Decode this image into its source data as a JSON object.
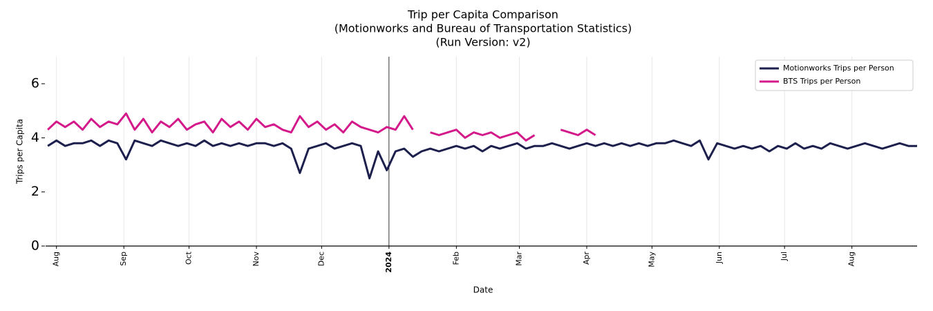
{
  "chart_data": {
    "type": "line",
    "title": [
      "Trip per Capita Comparison",
      "(Motionworks and Bureau of Transportation Statistics)",
      "(Run Version: v2)"
    ],
    "xlabel": "Date",
    "ylabel": "Trips per Capita",
    "x": [
      -4,
      0,
      4,
      8,
      12,
      16,
      20,
      24,
      28,
      32,
      36,
      40,
      44,
      48,
      52,
      56,
      60,
      64,
      68,
      72,
      76,
      80,
      84,
      88,
      92,
      96,
      100,
      104,
      108,
      112,
      116,
      120,
      124,
      128,
      132,
      136,
      140,
      144,
      148,
      152,
      156,
      160,
      164,
      168,
      172,
      176,
      180,
      184,
      188,
      192,
      196,
      200,
      204,
      208,
      212,
      216,
      220,
      224,
      228,
      232,
      236,
      240,
      244,
      248,
      252,
      256,
      260,
      264,
      268,
      272,
      276,
      280,
      284,
      288,
      292,
      296,
      300,
      304,
      308,
      312,
      316,
      320,
      324,
      328,
      332,
      336,
      340,
      344,
      348,
      352,
      356,
      360,
      364,
      368,
      372,
      376,
      380,
      384,
      388,
      392,
      396
    ],
    "series": [
      {
        "name": "Motionworks Trips per Person",
        "color": "#1d1f4d",
        "values": [
          3.7,
          3.9,
          3.7,
          3.8,
          3.8,
          3.9,
          3.7,
          3.9,
          3.8,
          3.2,
          3.9,
          3.8,
          3.7,
          3.9,
          3.8,
          3.7,
          3.8,
          3.7,
          3.9,
          3.7,
          3.8,
          3.7,
          3.8,
          3.7,
          3.8,
          3.8,
          3.7,
          3.8,
          3.6,
          2.7,
          3.6,
          3.7,
          3.8,
          3.6,
          3.7,
          3.8,
          3.7,
          2.5,
          3.5,
          2.8,
          3.5,
          3.6,
          3.3,
          3.5,
          3.6,
          3.5,
          3.6,
          3.7,
          3.6,
          3.7,
          3.5,
          3.7,
          3.6,
          3.7,
          3.8,
          3.6,
          3.7,
          3.7,
          3.8,
          3.7,
          3.6,
          3.7,
          3.8,
          3.7,
          3.8,
          3.7,
          3.8,
          3.7,
          3.8,
          3.7,
          3.8,
          3.8,
          3.9,
          3.8,
          3.7,
          3.9,
          3.2,
          3.8,
          3.7,
          3.6,
          3.7,
          3.6,
          3.7,
          3.5,
          3.7,
          3.6,
          3.8,
          3.6,
          3.7,
          3.6,
          3.8,
          3.7,
          3.6,
          3.7,
          3.8,
          3.7,
          3.6,
          3.7,
          3.8,
          3.7,
          3.7
        ]
      },
      {
        "name": "BTS Trips per Person",
        "color": "#d4198a",
        "values": [
          4.3,
          4.6,
          4.4,
          4.6,
          4.3,
          4.7,
          4.4,
          4.6,
          4.5,
          4.9,
          4.3,
          4.7,
          4.2,
          4.6,
          4.4,
          4.7,
          4.3,
          4.5,
          4.6,
          4.2,
          4.7,
          4.4,
          4.6,
          4.3,
          4.7,
          4.4,
          4.5,
          4.3,
          4.2,
          4.8,
          4.4,
          4.6,
          4.3,
          4.5,
          4.2,
          4.6,
          4.4,
          4.3,
          4.2,
          4.4,
          4.3,
          4.8,
          4.3,
          null,
          4.2,
          4.1,
          4.2,
          4.3,
          4.0,
          4.2,
          4.1,
          4.2,
          4.0,
          4.1,
          4.2,
          3.9,
          4.1,
          null,
          null,
          4.3,
          4.2,
          4.1,
          4.3,
          4.1,
          null,
          null,
          null,
          null,
          null,
          null,
          null,
          null,
          null,
          null,
          null,
          null,
          null,
          null,
          null,
          null,
          null,
          null,
          null,
          null,
          null,
          null,
          null,
          null,
          null,
          null,
          null,
          null,
          null,
          null,
          null,
          null,
          null,
          null,
          null,
          null,
          null
        ]
      }
    ],
    "xlim": [
      -5,
      396
    ],
    "xticks": [
      {
        "value": 0,
        "label": "Aug"
      },
      {
        "value": 31,
        "label": "Sep"
      },
      {
        "value": 61,
        "label": "Oct"
      },
      {
        "value": 92,
        "label": "Nov"
      },
      {
        "value": 122,
        "label": "Dec"
      },
      {
        "value": 153,
        "label": "2024"
      },
      {
        "value": 184,
        "label": "Feb"
      },
      {
        "value": 213,
        "label": "Mar"
      },
      {
        "value": 244,
        "label": "Apr"
      },
      {
        "value": 274,
        "label": "May"
      },
      {
        "value": 305,
        "label": "Jun"
      },
      {
        "value": 335,
        "label": "Jul"
      },
      {
        "value": 366,
        "label": "Aug"
      }
    ],
    "ylim": [
      0,
      7
    ],
    "yticks": [
      0,
      2,
      4,
      6
    ],
    "grid": true,
    "legend": "upper right"
  }
}
